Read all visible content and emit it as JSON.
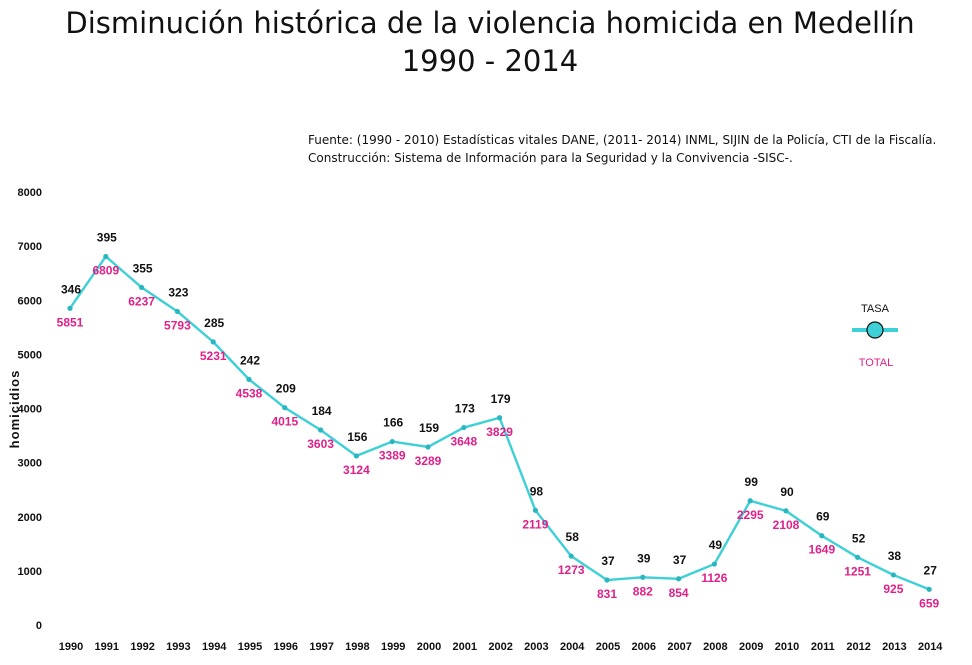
{
  "header": {
    "title_line1": "Disminución histórica de la violencia homicida en Medellín",
    "title_line2": "1990 - 2014",
    "source_line1": "Fuente: (1990 - 2010) Estadísticas vitales DANE, (2011- 2014) INML, SIJIN de la Policía, CTI de la Fiscalía.",
    "source_line2": "Construcción: Sistema de Información para la Seguridad y la Convivencia -SISC-."
  },
  "legend": {
    "rate_label": "TASA",
    "total_label": "TOTAL",
    "line_color": "#3dd0d6",
    "marker_color": "#29b6c0",
    "placement": "right"
  },
  "chart_data": {
    "type": "line",
    "ylabel": "homicidios",
    "xlabel": "",
    "ylim": [
      0,
      8000
    ],
    "yticks": [
      0,
      1000,
      2000,
      3000,
      4000,
      5000,
      6000,
      7000,
      8000
    ],
    "grid": false,
    "x": [
      1990,
      1991,
      1992,
      1993,
      1994,
      1995,
      1996,
      1997,
      1998,
      1999,
      2000,
      2001,
      2002,
      2003,
      2004,
      2005,
      2006,
      2007,
      2008,
      2009,
      2010,
      2011,
      2012,
      2013,
      2014
    ],
    "series": [
      {
        "name": "TOTAL",
        "color": "#3dd0d6",
        "label_color": "#e0208a",
        "values": [
          5851,
          6809,
          6237,
          5793,
          5231,
          4538,
          4015,
          3603,
          3124,
          3389,
          3289,
          3648,
          3829,
          2119,
          1273,
          831,
          882,
          854,
          1126,
          2295,
          2108,
          1649,
          1251,
          925,
          659
        ]
      },
      {
        "name": "TASA",
        "label_color": "#111111",
        "values": [
          346,
          395,
          355,
          323,
          285,
          242,
          209,
          184,
          156,
          166,
          159,
          173,
          179,
          98,
          58,
          37,
          39,
          37,
          49,
          99,
          90,
          69,
          52,
          38,
          27
        ]
      }
    ]
  }
}
